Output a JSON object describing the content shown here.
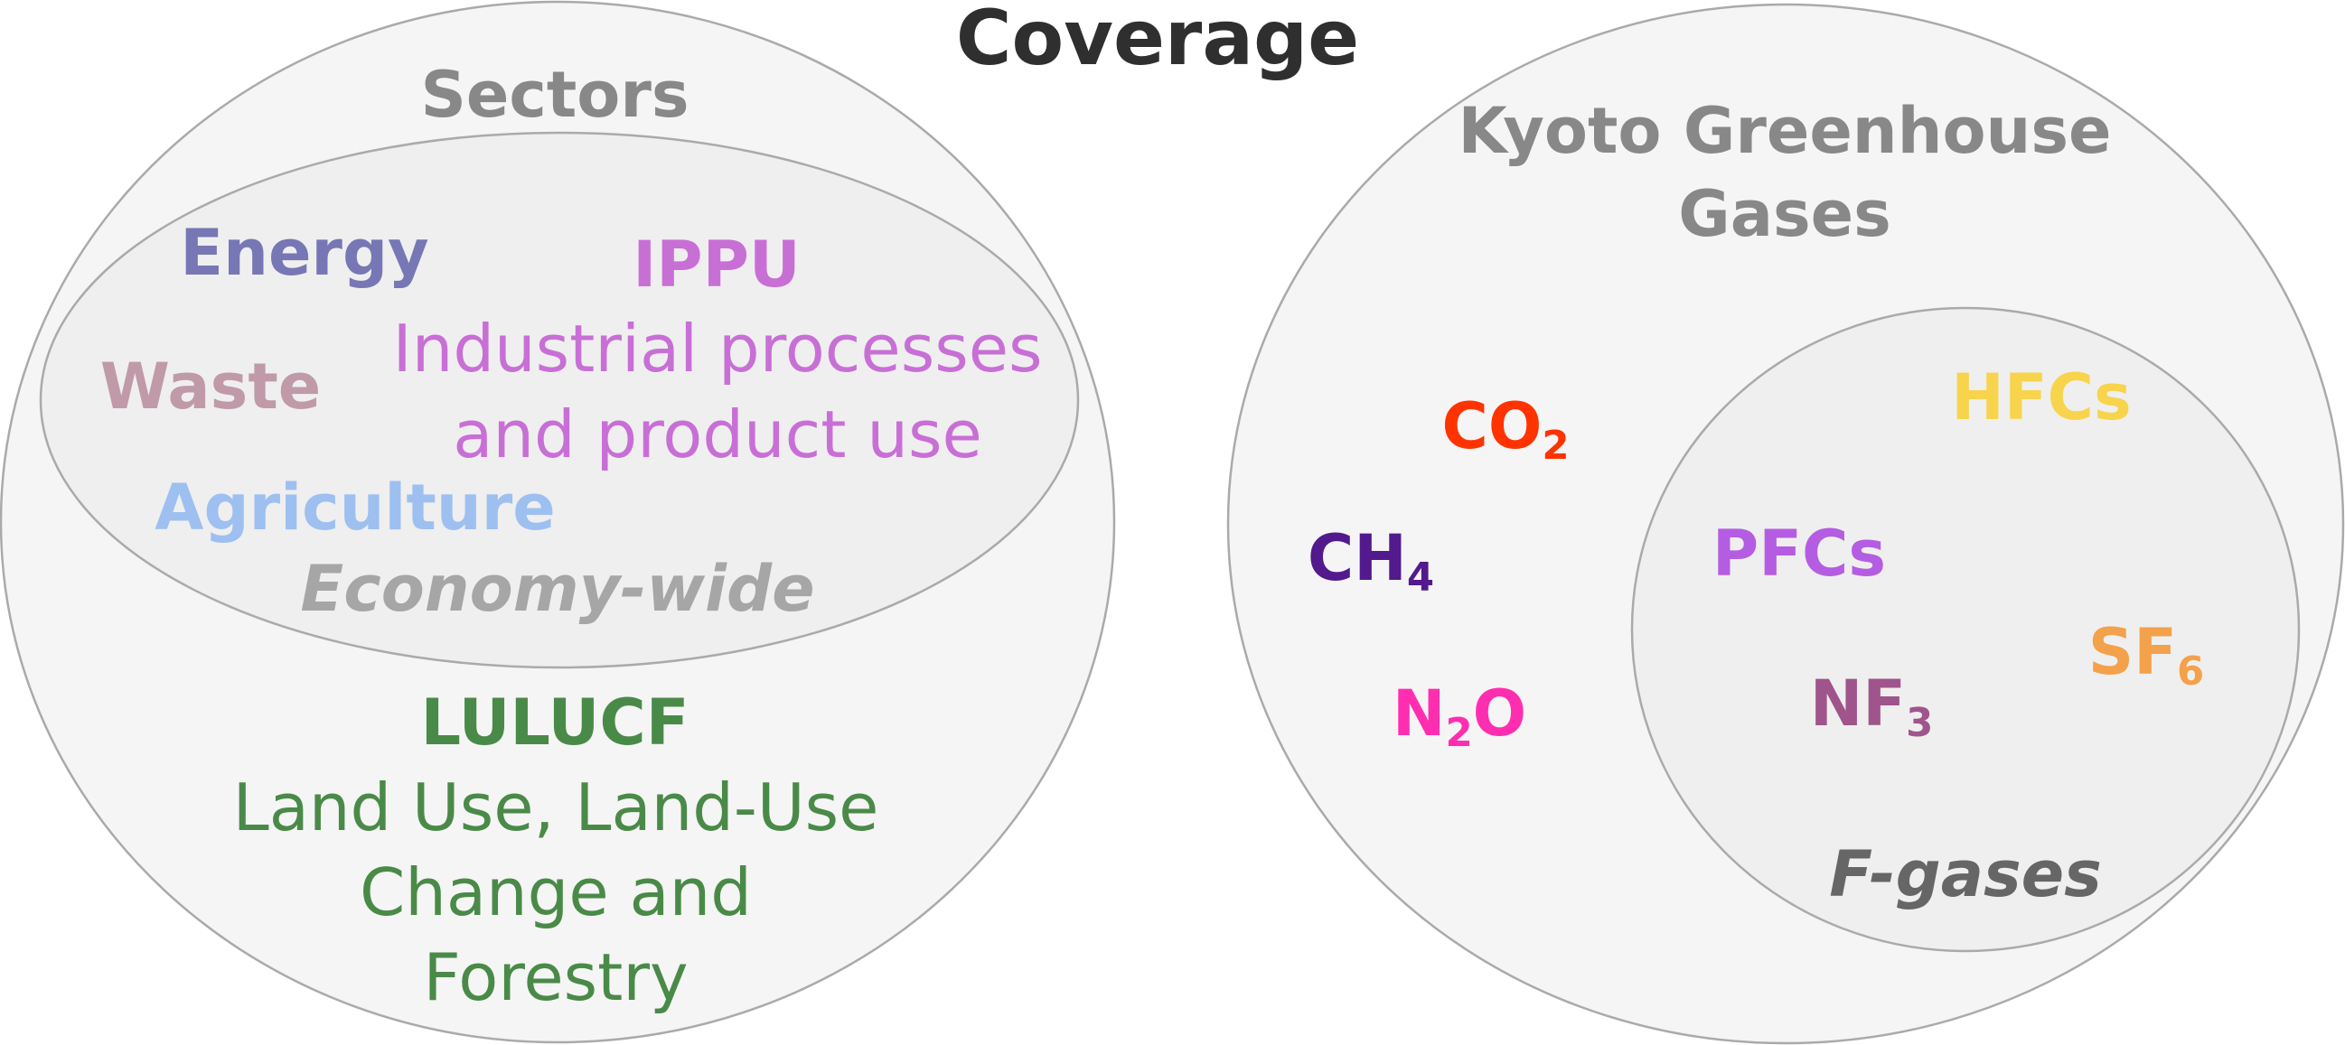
{
  "title": "Coverage",
  "sectors": {
    "heading": "Sectors",
    "energy": "Energy",
    "ippu": "IPPU",
    "ippu_desc_line1": "Industrial processes",
    "ippu_desc_line2": "and product use",
    "waste": "Waste",
    "agriculture": "Agriculture",
    "economy_wide": "Economy-wide",
    "lulucf": "LULUCF",
    "lulucf_line1": "Land Use, Land-Use",
    "lulucf_line2": "Change and",
    "lulucf_line3": "Forestry"
  },
  "gases": {
    "heading_line1": "Kyoto Greenhouse",
    "heading_line2": "Gases",
    "co2": {
      "base": "CO",
      "sub": "2"
    },
    "ch4": {
      "base": "CH",
      "sub": "4"
    },
    "n2o": {
      "base": "N",
      "sub": "2",
      "tail": "O"
    },
    "hfcs": "HFCs",
    "pfcs": "PFCs",
    "sf6": {
      "base": "SF",
      "sub": "6"
    },
    "nf3": {
      "base": "NF",
      "sub": "3"
    },
    "f_gases": "F-gases"
  },
  "colors": {
    "title": "#2f2f2f",
    "heading": "#888888",
    "outer_fill": "#f5f5f5",
    "inner_fill": "#efefef",
    "outline": "#aaaaaa",
    "energy": "#7777b5",
    "ippu": "#c86fd6",
    "waste": "#c09aa8",
    "agriculture": "#9ec0f0",
    "economy_wide": "#a6a6a6",
    "lulucf": "#4a8a48",
    "co2": "#ff3300",
    "ch4": "#521a8c",
    "n2o": "#ff2eb0",
    "hfcs": "#f7d44c",
    "pfcs": "#b45de2",
    "sf6": "#f4a14b",
    "nf3": "#a0548c",
    "f_gases": "#666666"
  }
}
